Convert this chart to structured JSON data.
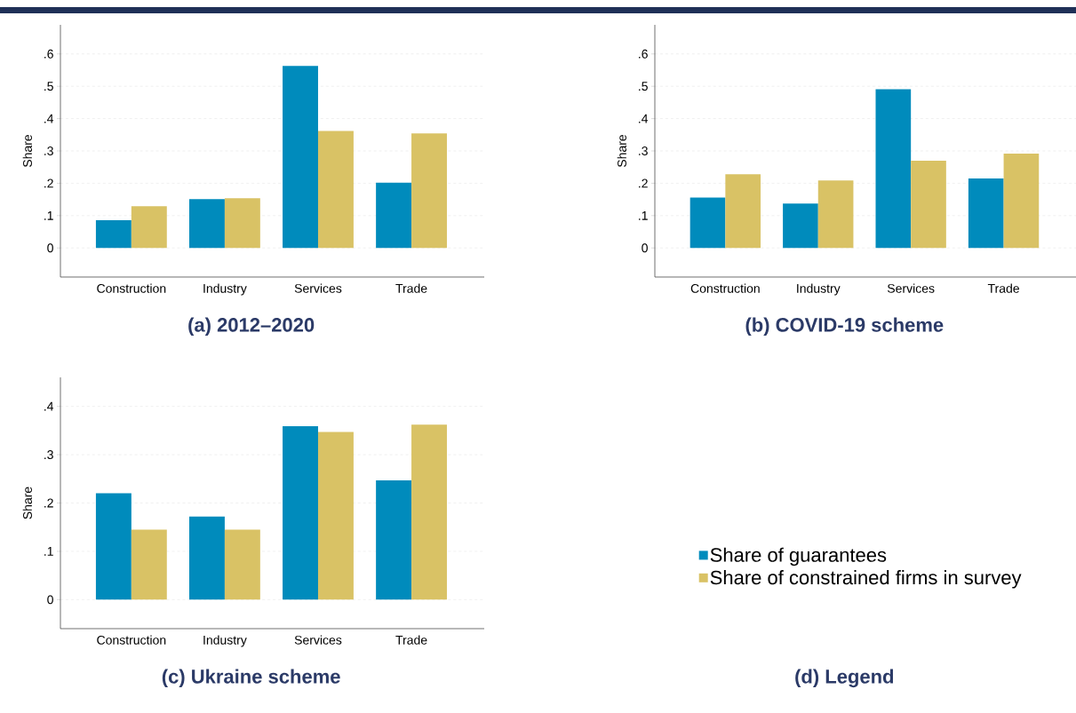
{
  "chart_data": [
    {
      "type": "bar",
      "title": "(a) 2012–2020",
      "ylabel": "Share",
      "categories": [
        "Construction",
        "Industry",
        "Services",
        "Trade"
      ],
      "ylim": [
        -0.09,
        0.69
      ],
      "yticks": [
        0,
        {
          "value": 0.1,
          "label": ".1"
        },
        {
          "value": 0.2,
          "label": ".2"
        },
        {
          "value": 0.3,
          "label": ".3"
        },
        {
          "value": 0.4,
          "label": ".4"
        },
        {
          "value": 0.5,
          "label": ".5"
        },
        {
          "value": 0.6,
          "label": ".6"
        }
      ],
      "grid": "y",
      "series": [
        {
          "color": "#008bbc",
          "values": [
            0.086,
            0.151,
            0.563,
            0.202
          ]
        },
        {
          "color": "#d9c265",
          "values": [
            0.129,
            0.154,
            0.362,
            0.354
          ]
        }
      ]
    },
    {
      "type": "bar",
      "title": "(b) COVID-19 scheme",
      "ylabel": "Share",
      "categories": [
        "Construction",
        "Industry",
        "Services",
        "Trade"
      ],
      "ylim": [
        -0.09,
        0.69
      ],
      "yticks": [
        0,
        {
          "value": 0.1,
          "label": ".1"
        },
        {
          "value": 0.2,
          "label": ".2"
        },
        {
          "value": 0.3,
          "label": ".3"
        },
        {
          "value": 0.4,
          "label": ".4"
        },
        {
          "value": 0.5,
          "label": ".5"
        },
        {
          "value": 0.6,
          "label": ".6"
        }
      ],
      "grid": "y",
      "series": [
        {
          "color": "#008bbc",
          "values": [
            0.156,
            0.137,
            0.491,
            0.215
          ]
        },
        {
          "color": "#d9c265",
          "values": [
            0.228,
            0.209,
            0.27,
            0.292
          ]
        }
      ]
    },
    {
      "type": "bar",
      "title": "(c) Ukraine scheme",
      "ylabel": "Share",
      "categories": [
        "Construction",
        "Industry",
        "Services",
        "Trade"
      ],
      "ylim": [
        -0.06,
        0.46
      ],
      "yticks": [
        0,
        {
          "value": 0.1,
          "label": ".1"
        },
        {
          "value": 0.2,
          "label": ".2"
        },
        {
          "value": 0.3,
          "label": ".3"
        },
        {
          "value": 0.4,
          "label": ".4"
        }
      ],
      "grid": "y",
      "legend": "right",
      "series": [
        {
          "name": "Share of guarantees",
          "color": "#008bbc",
          "values": [
            0.22,
            0.172,
            0.359,
            0.247
          ]
        },
        {
          "name": "Share of constrained firms in survey",
          "color": "#d9c265",
          "values": [
            0.145,
            0.145,
            0.347,
            0.362
          ]
        }
      ]
    },
    {
      "type": "other",
      "title": "(d) Legend"
    }
  ]
}
